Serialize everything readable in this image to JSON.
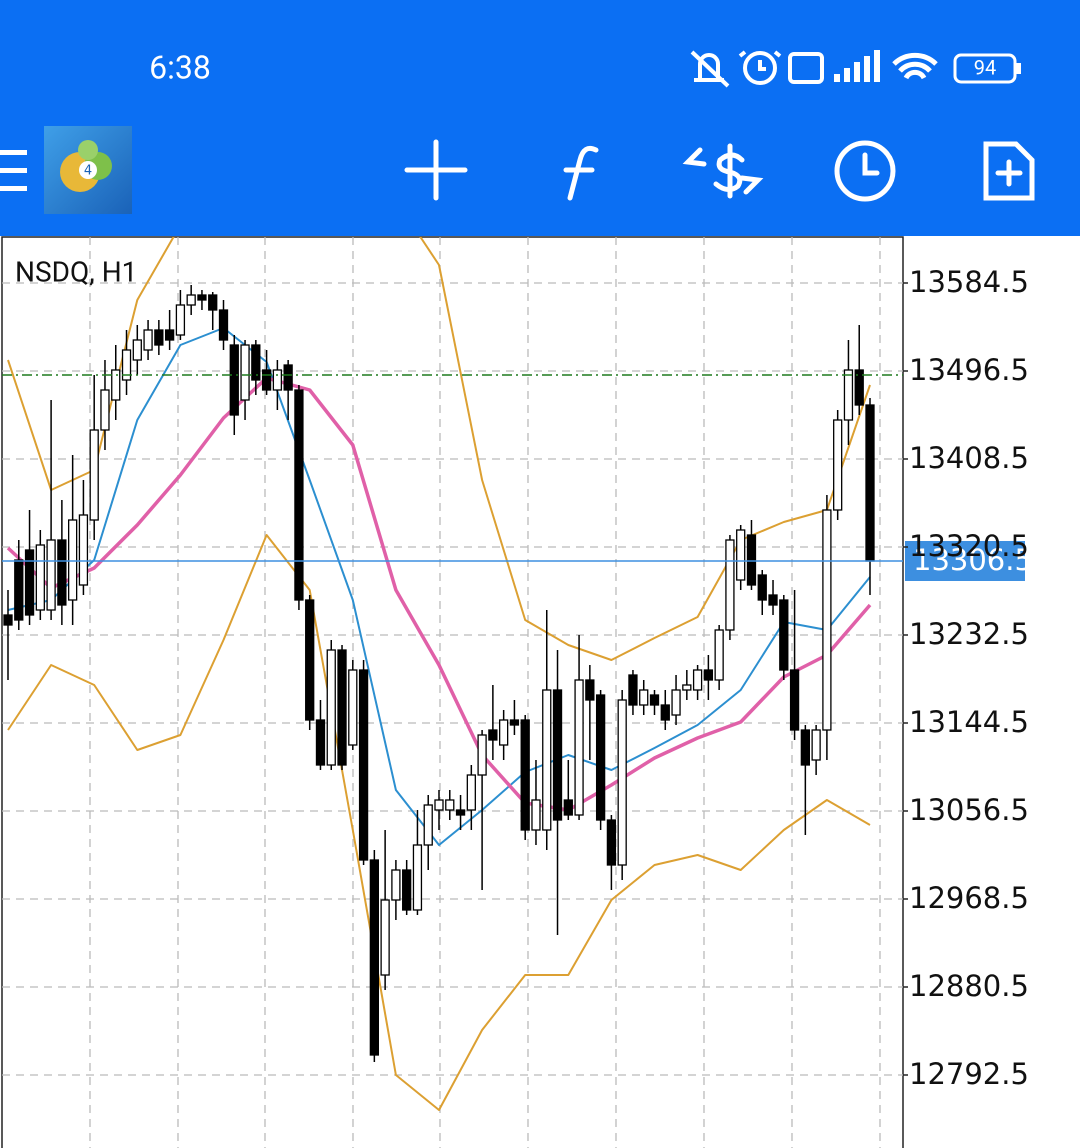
{
  "status_bar": {
    "time": "6:38",
    "battery": "94"
  },
  "chart_data": {
    "type": "candlestick",
    "title": "NSDQ, H1",
    "open": [
      13252.5,
      13307.5,
      13317.5,
      13257.5,
      13257.5,
      13327.5,
      13267.5,
      13282.5,
      13347.5,
      13437.5,
      13467.5,
      13487.5,
      13507.5,
      13517.5,
      13537.5,
      13537.5,
      13532.5,
      13562.5,
      13572.5,
      13572.5,
      13557.5,
      13522.5,
      13467.5,
      13522.5,
      13497.5,
      13477.5,
      13502.5,
      13477.5,
      13267.5,
      13147.5,
      13102.5,
      13217.5,
      13122.5,
      13197.5,
      13007.5,
      12892.5,
      12967.5,
      12997.5,
      12957.5,
      13022.5,
      13057.5,
      13057.5,
      13057.5,
      13057.5,
      13092.5,
      13137.5,
      13122.5,
      13147.5,
      13147.5,
      13037.5,
      13037.5,
      13177.5,
      13067.5,
      13052.5,
      13187.5,
      13172.5,
      13047.5,
      13002.5,
      13192.5,
      13162.5,
      13172.5,
      13162.5,
      13152.5,
      13177.5,
      13177.5,
      13197.5,
      13187.5,
      13237.5,
      13287.5,
      13332.5,
      13292.5,
      13272.5,
      13267.5,
      13197.5,
      13137.5,
      13107.5,
      13137.5,
      13357.5,
      13447.5,
      13497.5,
      13462.5
    ],
    "high": [
      13277.5,
      13327.5,
      13357.5,
      13337.5,
      13467.5,
      13367.5,
      13412.5,
      13387.5,
      13492.5,
      13507.5,
      13522.5,
      13537.5,
      13542.5,
      13547.5,
      13547.5,
      13557.5,
      13577.5,
      13582.5,
      13577.5,
      13575.5,
      13567.5,
      13532.5,
      13527.5,
      13527.5,
      13517.5,
      13507.5,
      13507.5,
      13482.5,
      13272.5,
      13167.5,
      13227.5,
      13222.5,
      13207.5,
      13207.5,
      13017.5,
      13037.5,
      13007.5,
      13007.5,
      13057.5,
      13072.5,
      13077.5,
      13077.5,
      13072.5,
      13102.5,
      13137.5,
      13182.5,
      13157.5,
      13167.5,
      13152.5,
      13107.5,
      13257.5,
      13217.5,
      13107.5,
      13232.5,
      13202.5,
      13177.5,
      13052.5,
      13177.5,
      13197.5,
      13187.5,
      13177.5,
      13177.5,
      13192.5,
      13197.5,
      13202.5,
      13212.5,
      13242.5,
      13332.5,
      13342.5,
      13347.5,
      13297.5,
      13287.5,
      13272.5,
      13277.5,
      13142.5,
      13142.5,
      13372.5,
      13457.5,
      13527.5,
      13542.5,
      13469.5
    ],
    "low": [
      13187.5,
      13237.5,
      13242.5,
      13247.5,
      13247.5,
      13242.5,
      13242.5,
      13272.5,
      13327.5,
      13417.5,
      13447.5,
      13472.5,
      13492.5,
      13507.5,
      13512.5,
      13517.5,
      13527.5,
      13552.5,
      13557.5,
      13537.5,
      13517.5,
      13432.5,
      13447.5,
      13472.5,
      13472.5,
      13457.5,
      13447.5,
      13257.5,
      13137.5,
      13097.5,
      13097.5,
      13097.5,
      13117.5,
      13002.5,
      12805.5,
      12877.5,
      12947.5,
      12952.5,
      12952.5,
      12997.5,
      13037.5,
      13047.5,
      13037.5,
      13037.5,
      12977.5,
      13107.5,
      13107.5,
      13132.5,
      13027.5,
      13022.5,
      13017.5,
      12932.5,
      13047.5,
      13047.5,
      13107.5,
      13037.5,
      12977.5,
      12987.5,
      13152.5,
      13152.5,
      13152.5,
      13137.5,
      13142.5,
      13167.5,
      13167.5,
      13167.5,
      13177.5,
      13227.5,
      13277.5,
      13277.5,
      13252.5,
      13252.5,
      13187.5,
      13127.5,
      13032.5,
      13092.5,
      13107.5,
      13347.5,
      13422.5,
      13452.5,
      13272.5
    ],
    "close": [
      13242.5,
      13247.5,
      13252.5,
      13322.5,
      13327.5,
      13262.5,
      13347.5,
      13352.5,
      13437.5,
      13477.5,
      13497.5,
      13517.5,
      13527.5,
      13537.5,
      13522.5,
      13527.5,
      13562.5,
      13572.5,
      13567.5,
      13557.5,
      13527.5,
      13452.5,
      13522.5,
      13487.5,
      13477.5,
      13497.5,
      13477.5,
      13267.5,
      13147.5,
      13102.5,
      13217.5,
      13102.5,
      13197.5,
      13007.5,
      12812.5,
      12967.5,
      12997.5,
      12957.5,
      13022.5,
      13062.5,
      13067.5,
      13067.5,
      13052.5,
      13092.5,
      13132.5,
      13127.5,
      13147.5,
      13142.5,
      13037.5,
      13067.5,
      13177.5,
      13047.5,
      13052.5,
      13187.5,
      13167.5,
      13047.5,
      13002.5,
      13167.5,
      13162.5,
      13177.5,
      13162.5,
      13147.5,
      13177.5,
      13182.5,
      13197.5,
      13187.5,
      13237.5,
      13327.5,
      13337.5,
      13282.5,
      13267.5,
      13262.5,
      13197.5,
      13137.5,
      13102.5,
      13137.5,
      13357.5,
      13447.5,
      13497.5,
      13462.5,
      13306.5
    ],
    "up_color": "#ffffff",
    "down_color": "#000000",
    "ylim": [
      12719.5,
      13630.5
    ],
    "yticks": [
      13584.5,
      13496.5,
      13408.5,
      13320.5,
      13232.5,
      13144.5,
      13056.5,
      12968.5,
      12880.5,
      12792.5
    ],
    "grid": true,
    "current_price": 13306.5,
    "current_price_color": "#3d8fe0",
    "order_price": 13492.5,
    "order_color": "#1e7a1e",
    "lines": [
      {
        "color": "#dca032",
        "x": [
          0,
          4,
          8,
          12,
          16,
          20,
          24,
          28,
          32,
          36,
          40,
          44,
          48,
          52,
          56,
          60,
          64,
          68,
          72,
          76,
          80
        ],
        "values": [
          13507.5,
          13377.5,
          13397.5,
          13567.5,
          13642.5,
          13639.5,
          13631.5,
          13652.5,
          13667.5,
          13667.5,
          13602.5,
          13387.5,
          13247.5,
          13222.5,
          13207.5,
          13229.5,
          13250.5,
          13327.5,
          13345.5,
          13357.5,
          13482.5
        ]
      },
      {
        "color": "#dca032",
        "x": [
          0,
          4,
          8,
          12,
          16,
          20,
          24,
          28,
          32,
          36,
          40,
          44,
          48,
          52,
          56,
          60,
          64,
          68,
          72,
          76,
          80
        ],
        "values": [
          13137.5,
          13202.5,
          13182.5,
          13117.5,
          13132.5,
          13227.5,
          13332.5,
          13277.5,
          13037.5,
          12792.5,
          12757.5,
          12837.5,
          12892.5,
          12892.5,
          12967.5,
          13002.5,
          13012.5,
          12997.5,
          13037.5,
          13067.5,
          13042.5
        ]
      },
      {
        "color": "#2c8fd0",
        "x": [
          0,
          4,
          8,
          12,
          16,
          20,
          24,
          28,
          32,
          36,
          40,
          44,
          48,
          52,
          56,
          60,
          64,
          68,
          72,
          76,
          80
        ],
        "values": [
          13257.5,
          13267.5,
          13307.5,
          13447.5,
          13522.5,
          13539.5,
          13505.5,
          13387.5,
          13267.5,
          13077.5,
          13022.5,
          13057.5,
          13095.5,
          13112.5,
          13097.5,
          13119.5,
          13142.5,
          13177.5,
          13245.5,
          13237.5,
          13290.5
        ]
      },
      {
        "color": "#e060a8",
        "x": [
          0,
          4,
          8,
          12,
          16,
          20,
          24,
          28,
          32,
          36,
          40,
          44,
          48,
          52,
          56,
          60,
          64,
          68,
          72,
          76,
          80
        ],
        "values": [
          13319.5,
          13279.5,
          13299.5,
          13342.5,
          13392.5,
          13449.5,
          13489.5,
          13477.5,
          13422.5,
          13277.5,
          13202.5,
          13112.5,
          13064.5,
          13057.5,
          13082.5,
          13109.5,
          13129.5,
          13145.5,
          13190.5,
          13212.5,
          13262.5
        ]
      }
    ]
  }
}
